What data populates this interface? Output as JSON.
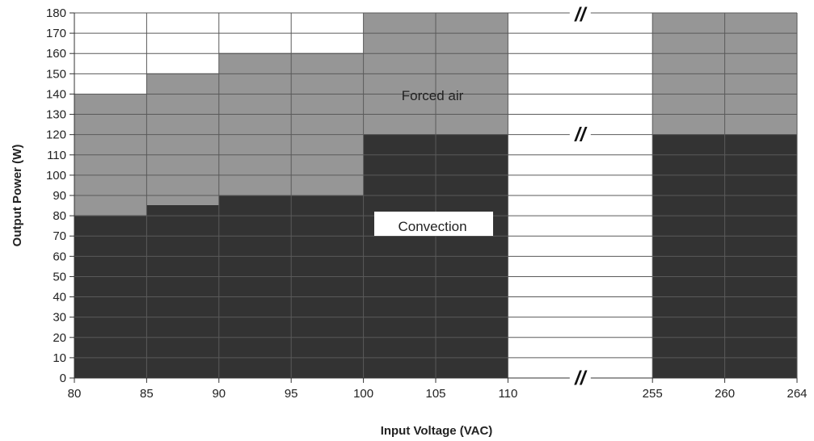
{
  "chart_data": {
    "type": "area",
    "xlabel": "Input Voltage (VAC)",
    "ylabel": "Output Power (W)",
    "ylim": [
      0,
      180
    ],
    "y_ticks": [
      0,
      10,
      20,
      30,
      40,
      50,
      60,
      70,
      80,
      90,
      100,
      110,
      120,
      130,
      140,
      150,
      160,
      170,
      180
    ],
    "x_tick_labels": [
      "80",
      "85",
      "90",
      "95",
      "100",
      "105",
      "110",
      "255",
      "260",
      "264"
    ],
    "axis_break_mark": "//",
    "grid": true,
    "series": [
      {
        "name": "Forced air",
        "color": "#969696",
        "steps": [
          {
            "x0": 80,
            "x1": 85,
            "value": 140
          },
          {
            "x0": 85,
            "x1": 90,
            "value": 150
          },
          {
            "x0": 90,
            "x1": 100,
            "value": 160
          },
          {
            "x0": 100,
            "x1": 110,
            "value": 180
          },
          {
            "x0": 255,
            "x1": 264,
            "value": 180
          }
        ]
      },
      {
        "name": "Convection",
        "color": "#333333",
        "steps": [
          {
            "x0": 80,
            "x1": 85,
            "value": 80
          },
          {
            "x0": 85,
            "x1": 90,
            "value": 85
          },
          {
            "x0": 90,
            "x1": 100,
            "value": 90
          },
          {
            "x0": 100,
            "x1": 110,
            "value": 120
          },
          {
            "x0": 255,
            "x1": 264,
            "value": 120
          }
        ]
      }
    ]
  }
}
